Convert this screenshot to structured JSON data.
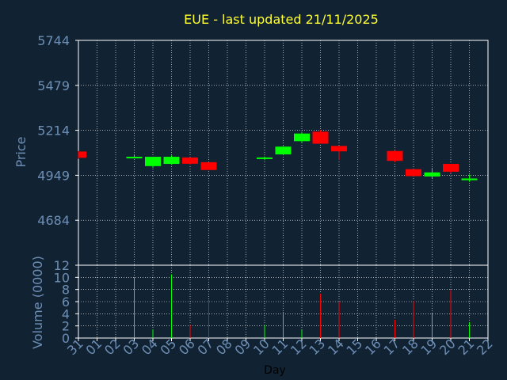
{
  "chart_data": {
    "type": "candlestick",
    "title": "EUE - last updated 21/11/2025",
    "ylabel": "Price",
    "xlabel": "Day",
    "volume_ylabel": "Volume (0000)",
    "colors": {
      "background": "#112233",
      "text": "#6d8fb5",
      "title": "#ffff33",
      "up": "#00ff00",
      "down": "#ff0000",
      "grid": "#ffffff",
      "axis": "#ffffff",
      "label": "#ffffff"
    },
    "price_axis": {
      "ylim": [
        4419,
        5744
      ],
      "ticks": [
        5744,
        5479,
        5214,
        4949,
        4684
      ]
    },
    "volume_axis": {
      "ylim": [
        0,
        12
      ],
      "ticks": [
        0,
        2,
        4,
        6,
        8,
        10,
        12
      ]
    },
    "x_labels": [
      "31",
      "01",
      "02",
      "03",
      "04",
      "05",
      "06",
      "07",
      "08",
      "09",
      "10",
      "11",
      "12",
      "13",
      "14",
      "15",
      "16",
      "17",
      "18",
      "19",
      "20",
      "21",
      "22"
    ],
    "candles": [
      {
        "i": 0,
        "open": 5089,
        "high": 5092,
        "low": 5046,
        "close": 5052,
        "volume": 0
      },
      {
        "i": 3,
        "open": 5055,
        "high": 5070,
        "low": 5050,
        "close": 5058,
        "volume": 10
      },
      {
        "i": 4,
        "open": 5003,
        "high": 5058,
        "low": 4993,
        "close": 5058,
        "volume": 1.4
      },
      {
        "i": 5,
        "open": 5016,
        "high": 5066,
        "low": 5011,
        "close": 5058,
        "volume": 10.5
      },
      {
        "i": 6,
        "open": 5054,
        "high": 5054,
        "low": 5011,
        "close": 5017,
        "volume": 2.2
      },
      {
        "i": 7,
        "open": 5026,
        "high": 5026,
        "low": 4980,
        "close": 4980,
        "volume": 6.3
      },
      {
        "i": 10,
        "open": 5047,
        "high": 5060,
        "low": 5038,
        "close": 5054,
        "volume": 2.2
      },
      {
        "i": 11,
        "open": 5072,
        "high": 5120,
        "low": 5070,
        "close": 5118,
        "volume": 4.3
      },
      {
        "i": 12,
        "open": 5150,
        "high": 5203,
        "low": 5140,
        "close": 5195,
        "volume": 1.3
      },
      {
        "i": 13,
        "open": 5206,
        "high": 5216,
        "low": 5135,
        "close": 5135,
        "volume": 7.3
      },
      {
        "i": 14,
        "open": 5122,
        "high": 5122,
        "low": 5040,
        "close": 5090,
        "volume": 6
      },
      {
        "i": 17,
        "open": 5092,
        "high": 5094,
        "low": 5027,
        "close": 5034,
        "volume": 3
      },
      {
        "i": 18,
        "open": 4985,
        "high": 4985,
        "low": 4944,
        "close": 4944,
        "volume": 6.1
      },
      {
        "i": 19,
        "open": 4942,
        "high": 4993,
        "low": 4931,
        "close": 4966,
        "volume": 4.2
      },
      {
        "i": 20,
        "open": 5016,
        "high": 5016,
        "low": 4960,
        "close": 4970,
        "volume": 7.9
      },
      {
        "i": 21,
        "open": 4920,
        "high": 4953,
        "low": 4910,
        "close": 4930,
        "volume": 2.6
      }
    ]
  }
}
